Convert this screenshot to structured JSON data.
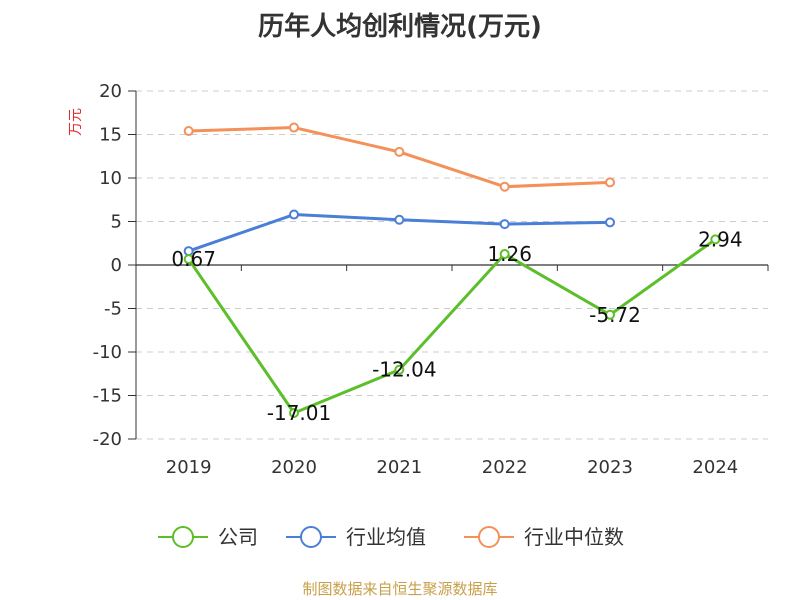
{
  "title": "历年人均创利情况(万元)",
  "source": "制图数据来自恒生聚源数据库",
  "chart_data": {
    "type": "line",
    "ylabel": "万元",
    "x": [
      "2019",
      "2020",
      "2021",
      "2022",
      "2023",
      "2024"
    ],
    "ylim": [
      -20,
      20
    ],
    "yticks": [
      20,
      15,
      10,
      5,
      0,
      -5,
      -10,
      -15,
      -20
    ],
    "grid": true,
    "legend_position": "bottom-center",
    "series": [
      {
        "name": "公司",
        "color": "#5cbf2a",
        "values": [
          0.67,
          -17.01,
          -12.04,
          1.26,
          -5.72,
          2.94
        ],
        "labels": [
          "0.67",
          "-17.01",
          "-12.04",
          "1.26",
          "-5.72",
          "2.94"
        ]
      },
      {
        "name": "行业均值",
        "color": "#4a7fd8",
        "values": [
          1.6,
          5.8,
          5.2,
          4.7,
          4.9,
          null
        ]
      },
      {
        "name": "行业中位数",
        "color": "#f4915a",
        "values": [
          15.4,
          15.8,
          13.0,
          9.0,
          9.5,
          null
        ]
      }
    ]
  }
}
